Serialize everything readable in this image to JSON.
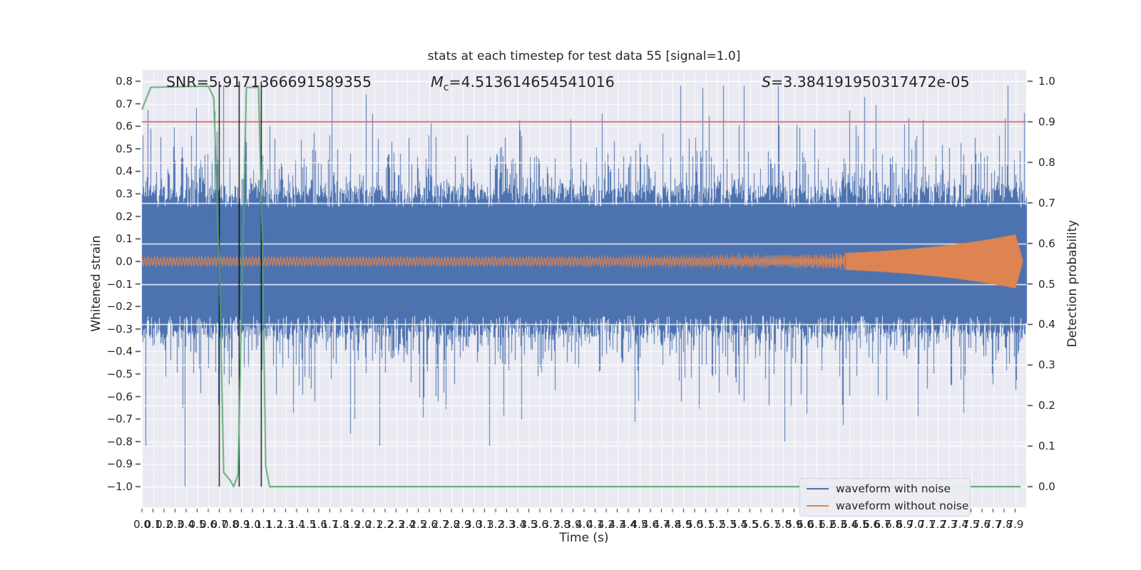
{
  "title": "stats at each timestep for test data 55 [signal=1.0]",
  "annotations": {
    "snr": "SNR=5.9171366691589355",
    "mc_var": "M",
    "mc_sub": "c",
    "mc_value": "=4.513614654541016",
    "s_var": "S",
    "s_value": "=3.384191950317472e-05"
  },
  "axes": {
    "x": {
      "label": "Time (s)",
      "ticks": [
        "0.0",
        "0.1",
        "0.2",
        "0.3",
        "0.4",
        "0.5",
        "0.6",
        "0.7",
        "0.8",
        "0.9",
        "1.0",
        "1.1",
        "1.2",
        "1.3",
        "1.4",
        "1.5",
        "1.6",
        "1.7",
        "1.8",
        "1.9",
        "2.0",
        "2.1",
        "2.2",
        "2.3",
        "2.4",
        "2.5",
        "2.6",
        "2.7",
        "2.8",
        "2.9",
        "3.0",
        "3.1",
        "3.2",
        "3.3",
        "3.4",
        "3.5",
        "3.6",
        "3.7",
        "3.8",
        "3.9",
        "4.0",
        "4.1",
        "4.2",
        "4.3",
        "4.4",
        "4.5",
        "4.6",
        "4.7",
        "4.8",
        "4.9",
        "5.0",
        "5.1",
        "5.2",
        "5.3",
        "5.4",
        "5.5",
        "5.6",
        "5.7",
        "5.8",
        "5.9",
        "6.0",
        "6.1",
        "6.2",
        "6.3",
        "6.4",
        "6.5",
        "6.6",
        "6.7",
        "6.8",
        "6.9",
        "7.0",
        "7.1",
        "7.2",
        "7.3",
        "7.4",
        "7.5",
        "7.6",
        "7.7",
        "7.8",
        "7.9"
      ]
    },
    "left": {
      "label": "Whitened strain",
      "ticks": [
        "0.8",
        "0.7",
        "0.6",
        "0.5",
        "0.4",
        "0.3",
        "0.2",
        "0.1",
        "0.0",
        "−0.1",
        "−0.2",
        "−0.3",
        "−0.4",
        "−0.5",
        "−0.6",
        "−0.7",
        "−0.8",
        "−0.9",
        "−1.0"
      ]
    },
    "right": {
      "label": "Detection probability",
      "ticks": [
        "1.0",
        "0.9",
        "0.8",
        "0.7",
        "0.6",
        "0.5",
        "0.4",
        "0.3",
        "0.2",
        "0.1",
        "0.0"
      ]
    }
  },
  "legend": {
    "entries": [
      {
        "label": "waveform with noise",
        "color": "#4c72b0"
      },
      {
        "label": "waveform without noise",
        "color": "#dd8452"
      }
    ],
    "location": "lower right"
  },
  "colors": {
    "plot_background": "#eaeaf2",
    "grid": "#ffffff",
    "noise_waveform": "#4c72b0",
    "clean_waveform": "#dd8452",
    "detection_probability": "#55a868",
    "threshold_line": "#c44e52",
    "event_lines": "#000000",
    "text": "#262626"
  },
  "chart_data": {
    "type": "line",
    "title": "stats at each timestep for test data 55 [signal=1.0]",
    "xlabel": "Time (s)",
    "ylabel": "Whitened strain",
    "ylabel_right": "Detection probability",
    "xlim": [
      0.0,
      8.0
    ],
    "ylim_left": [
      -1.09,
      0.85
    ],
    "ylim_right": [
      -0.047,
      1.028
    ],
    "grid": true,
    "x_tick_step": 0.1,
    "threshold": {
      "axis": "right",
      "value": 0.9,
      "color": "#c44e52"
    },
    "event_vlines": {
      "x": [
        0.7,
        0.88,
        1.08
      ],
      "color": "#000000"
    },
    "series": [
      {
        "name": "waveform with noise",
        "color": "#4c72b0",
        "kind": "dense-noise",
        "core_band": [
          -0.3,
          0.3
        ],
        "typical_peak": 0.6,
        "max_points": [
          [
            0.39,
            -1.0
          ],
          [
            5.07,
            0.77
          ],
          [
            5.81,
            -0.8
          ],
          [
            7.98,
            0.66
          ]
        ],
        "seed": 55
      },
      {
        "name": "waveform without noise",
        "color": "#dd8452",
        "kind": "chirp",
        "amplitude_start": 0.02,
        "amplitude_peak": 0.12,
        "merger_time": 7.95,
        "base_freq_hz": 35
      },
      {
        "name": "detection probability",
        "color": "#55a868",
        "axis": "right",
        "points": [
          [
            0.0,
            0.93
          ],
          [
            0.08,
            0.985
          ],
          [
            0.6,
            0.988
          ],
          [
            0.65,
            0.96
          ],
          [
            0.7,
            0.55
          ],
          [
            0.74,
            0.035
          ],
          [
            0.8,
            0.015
          ],
          [
            0.83,
            0.0
          ],
          [
            0.87,
            0.03
          ],
          [
            0.91,
            0.55
          ],
          [
            0.945,
            0.985
          ],
          [
            1.055,
            0.985
          ],
          [
            1.09,
            0.6
          ],
          [
            1.12,
            0.05
          ],
          [
            1.155,
            0.0
          ],
          [
            7.95,
            0.0
          ]
        ]
      }
    ]
  }
}
